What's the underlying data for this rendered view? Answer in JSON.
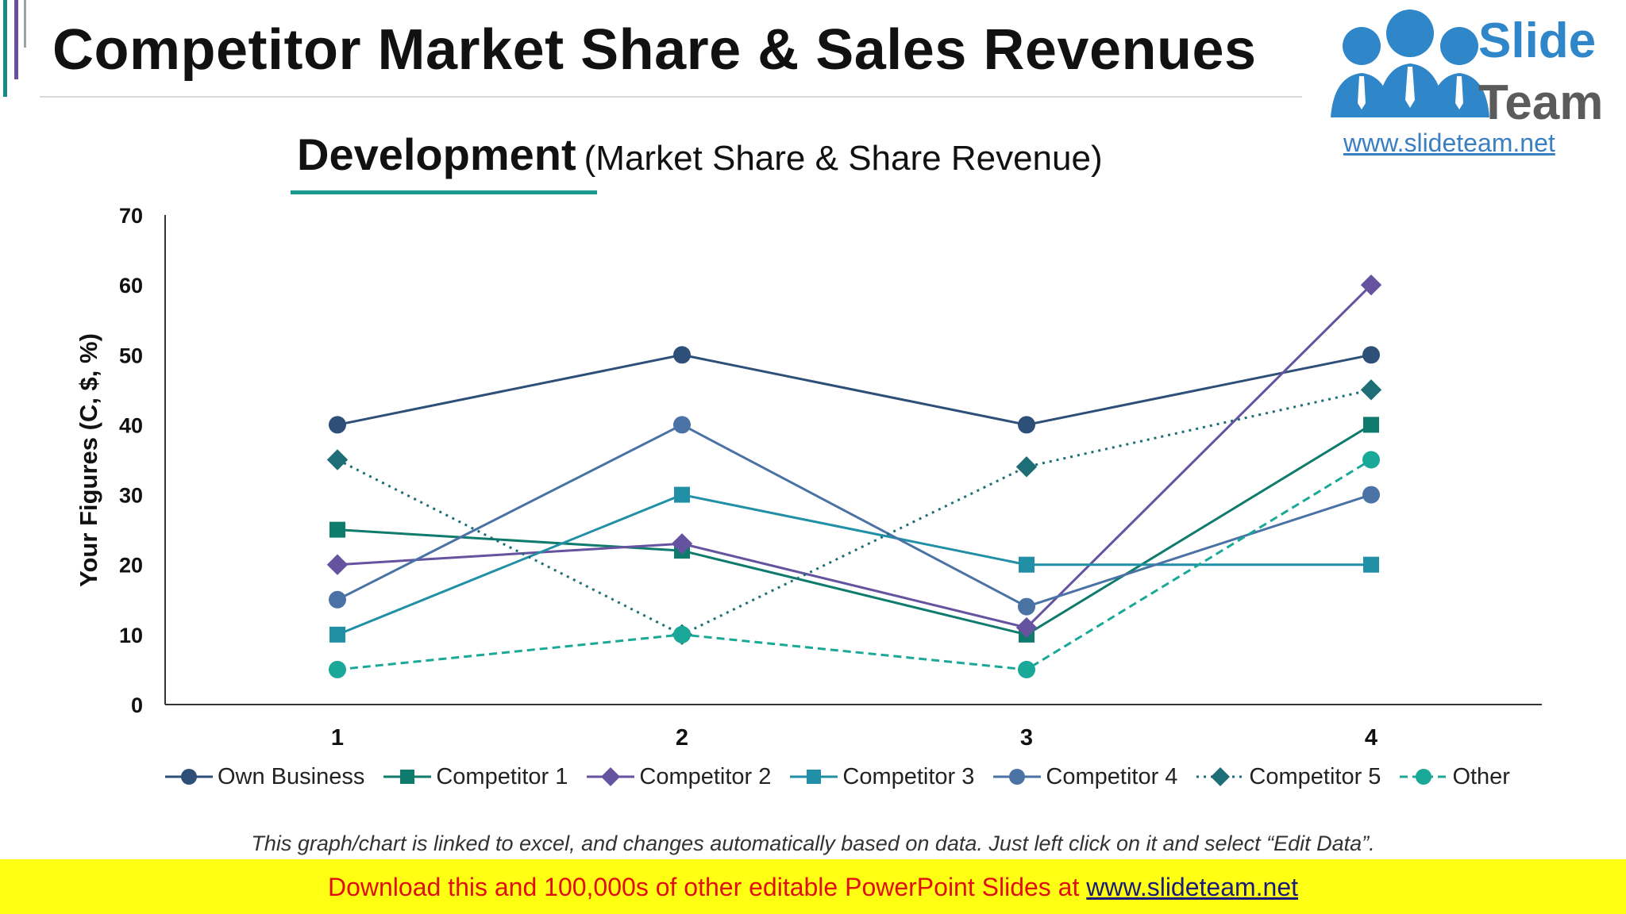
{
  "slide": {
    "title": "Competitor Market Share & Sales Revenues",
    "subtitle_main": "Development",
    "subtitle_rest": "(Market Share & Share Revenue)",
    "footnote": "This graph/chart is linked to excel, and changes automatically based on data. Just left click on it and select “Edit Data”.",
    "banner_text": "Download this and 100,000s of other editable PowerPoint Slides at",
    "banner_link": "www.slideteam.net"
  },
  "logo": {
    "line1": "Slide",
    "line2": "Team",
    "url": "www.slideteam.net",
    "icon": "people-group-icon"
  },
  "colors": {
    "accent_teal": "#1a9a8f",
    "accent_purple": "#6a4f9c",
    "banner_bg": "#ffff14",
    "banner_text": "#e01010"
  },
  "chart_data": {
    "type": "line",
    "title": "",
    "xlabel": "",
    "ylabel": "Your Figures (C, $, %)",
    "categories": [
      "1",
      "2",
      "3",
      "4"
    ],
    "ylim": [
      0,
      70
    ],
    "yticks": [
      "0",
      "10",
      "20",
      "30",
      "40",
      "50",
      "60",
      "70"
    ],
    "grid": false,
    "legend_position": "bottom",
    "series": [
      {
        "name": "Own Business",
        "values": [
          40,
          50,
          40,
          50
        ],
        "color": "#2e4f78",
        "marker": "circle",
        "dash": "solid"
      },
      {
        "name": "Competitor 1",
        "values": [
          25,
          22,
          10,
          40
        ],
        "color": "#0f7b6c",
        "marker": "square",
        "dash": "solid"
      },
      {
        "name": "Competitor 2",
        "values": [
          20,
          23,
          11,
          60
        ],
        "color": "#6553a0",
        "marker": "diamond",
        "dash": "solid"
      },
      {
        "name": "Competitor 3",
        "values": [
          10,
          30,
          20,
          20
        ],
        "color": "#2190a6",
        "marker": "square",
        "dash": "solid"
      },
      {
        "name": "Competitor 4",
        "values": [
          15,
          40,
          14,
          30
        ],
        "color": "#4a72a5",
        "marker": "circle",
        "dash": "solid"
      },
      {
        "name": "Competitor 5",
        "values": [
          35,
          10,
          34,
          45
        ],
        "color": "#1d6e76",
        "marker": "diamond",
        "dash": "dotted"
      },
      {
        "name": "Other",
        "values": [
          5,
          10,
          5,
          35
        ],
        "color": "#1aa898",
        "marker": "circle",
        "dash": "dashed"
      }
    ]
  }
}
